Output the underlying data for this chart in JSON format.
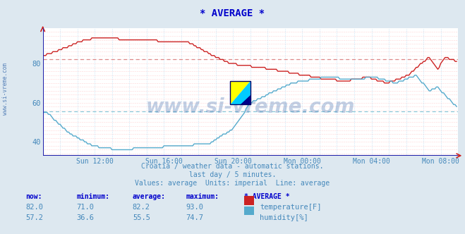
{
  "title": "* AVERAGE *",
  "title_color": "#0000cc",
  "bg_color": "#dde8f0",
  "plot_bg_color": "#ffffff",
  "grid_color_pink": "#ffb0b0",
  "grid_color_blue": "#99ccee",
  "axis_color": "#2222aa",
  "tick_color": "#4488bb",
  "xlim": [
    0,
    288
  ],
  "ylim": [
    33,
    98
  ],
  "yticks": [
    40,
    60,
    80
  ],
  "xtick_labels": [
    "Sun 12:00",
    "Sun 16:00",
    "Sun 20:00",
    "Mon 00:00",
    "Mon 04:00",
    "Mon 08:00"
  ],
  "xtick_positions": [
    36,
    84,
    132,
    180,
    228,
    276
  ],
  "temp_color": "#cc2222",
  "humid_color": "#55aacc",
  "avg_line_color_temp": "#dd8888",
  "avg_line_color_humid": "#88ccdd",
  "watermark": "www.si-vreme.com",
  "watermark_color": "#3366aa",
  "subtitle1": "Croatia / weather data - automatic stations.",
  "subtitle2": "last day / 5 minutes.",
  "subtitle3": "Values: average  Units: imperial  Line: average",
  "subtitle_color": "#4488bb",
  "table_header": [
    "now:",
    "minimum:",
    "average:",
    "maximum:",
    "* AVERAGE *"
  ],
  "table_header_color": "#0000cc",
  "temp_stats": [
    82.0,
    71.0,
    82.2,
    93.0
  ],
  "humid_stats": [
    57.2,
    36.6,
    55.5,
    74.7
  ],
  "temp_avg": 82.2,
  "humid_avg": 55.5,
  "bottom_label_color": "#4488bb",
  "arrow_color": "#cc2222",
  "left_axis_color": "#2222aa"
}
